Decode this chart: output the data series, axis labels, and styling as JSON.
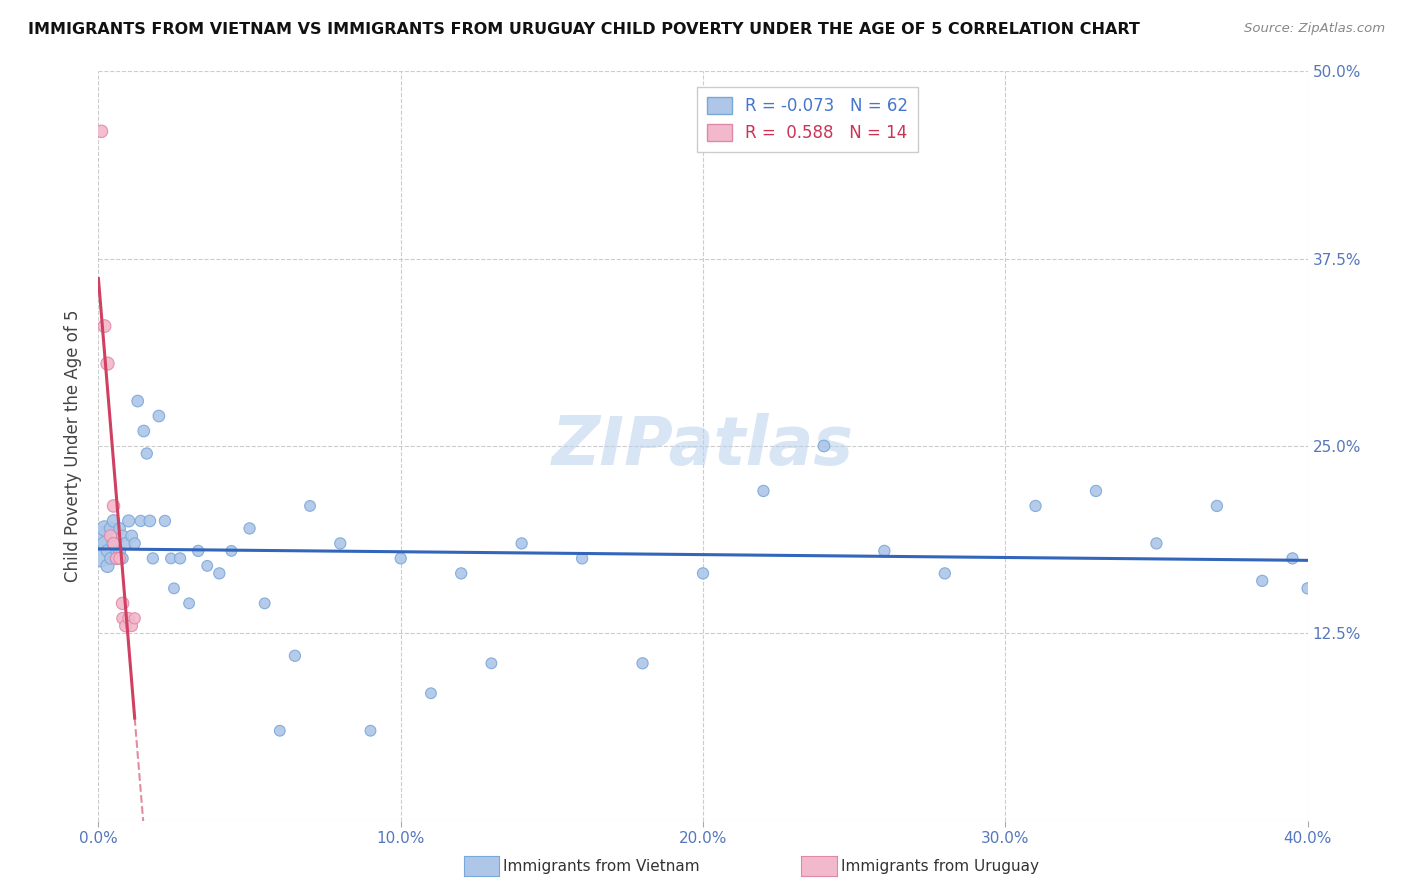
{
  "title": "IMMIGRANTS FROM VIETNAM VS IMMIGRANTS FROM URUGUAY CHILD POVERTY UNDER THE AGE OF 5 CORRELATION CHART",
  "source": "Source: ZipAtlas.com",
  "ylabel": "Child Poverty Under the Age of 5",
  "xlim": [
    0.0,
    0.4
  ],
  "ylim": [
    0.0,
    0.5
  ],
  "xticks": [
    0.0,
    0.1,
    0.2,
    0.3,
    0.4
  ],
  "yticks": [
    0.0,
    0.125,
    0.25,
    0.375,
    0.5
  ],
  "xtick_labels": [
    "0.0%",
    "10.0%",
    "20.0%",
    "30.0%",
    "40.0%"
  ],
  "ytick_labels_right": [
    "",
    "12.5%",
    "25.0%",
    "37.5%",
    "50.0%"
  ],
  "vietnam_color": "#aec6e8",
  "uruguay_color": "#f2b8cb",
  "vietnam_edge": "#7aa8d8",
  "uruguay_edge": "#e088a8",
  "trend_vietnam_color": "#3366bb",
  "trend_uruguay_color": "#d04060",
  "legend_vietnam_label": "Immigrants from Vietnam",
  "legend_uruguay_label": "Immigrants from Uruguay",
  "R_vietnam": -0.073,
  "N_vietnam": 62,
  "R_uruguay": 0.588,
  "N_uruguay": 14,
  "watermark": "ZIPatlas",
  "vietnam_x": [
    0.001,
    0.001,
    0.002,
    0.002,
    0.003,
    0.003,
    0.004,
    0.004,
    0.005,
    0.005,
    0.006,
    0.006,
    0.007,
    0.007,
    0.008,
    0.008,
    0.009,
    0.01,
    0.011,
    0.012,
    0.013,
    0.014,
    0.015,
    0.016,
    0.017,
    0.018,
    0.02,
    0.022,
    0.024,
    0.025,
    0.027,
    0.03,
    0.033,
    0.036,
    0.04,
    0.044,
    0.05,
    0.055,
    0.06,
    0.065,
    0.07,
    0.08,
    0.09,
    0.1,
    0.11,
    0.12,
    0.13,
    0.14,
    0.16,
    0.18,
    0.2,
    0.22,
    0.24,
    0.26,
    0.28,
    0.31,
    0.33,
    0.35,
    0.37,
    0.385,
    0.395,
    0.4
  ],
  "vietnam_y": [
    0.19,
    0.175,
    0.195,
    0.185,
    0.18,
    0.17,
    0.195,
    0.175,
    0.2,
    0.185,
    0.18,
    0.175,
    0.195,
    0.18,
    0.19,
    0.175,
    0.185,
    0.2,
    0.19,
    0.185,
    0.28,
    0.2,
    0.26,
    0.245,
    0.2,
    0.175,
    0.27,
    0.2,
    0.175,
    0.155,
    0.175,
    0.145,
    0.18,
    0.17,
    0.165,
    0.18,
    0.195,
    0.145,
    0.06,
    0.11,
    0.21,
    0.185,
    0.06,
    0.175,
    0.085,
    0.165,
    0.105,
    0.185,
    0.175,
    0.105,
    0.165,
    0.22,
    0.25,
    0.18,
    0.165,
    0.21,
    0.22,
    0.185,
    0.21,
    0.16,
    0.175,
    0.155
  ],
  "vietnam_size": [
    200,
    150,
    120,
    100,
    80,
    90,
    80,
    70,
    80,
    90,
    70,
    80,
    70,
    75,
    70,
    65,
    70,
    75,
    70,
    65,
    70,
    65,
    70,
    65,
    70,
    65,
    70,
    65,
    60,
    60,
    65,
    60,
    65,
    60,
    65,
    60,
    65,
    60,
    60,
    65,
    60,
    65,
    60,
    65,
    60,
    65,
    60,
    65,
    65,
    65,
    65,
    65,
    70,
    65,
    65,
    65,
    65,
    65,
    65,
    65,
    65,
    65
  ],
  "uruguay_x": [
    0.001,
    0.002,
    0.003,
    0.004,
    0.005,
    0.005,
    0.006,
    0.007,
    0.008,
    0.008,
    0.009,
    0.01,
    0.011,
    0.012
  ],
  "uruguay_y": [
    0.46,
    0.33,
    0.305,
    0.19,
    0.21,
    0.185,
    0.175,
    0.175,
    0.145,
    0.135,
    0.13,
    0.135,
    0.13,
    0.135
  ],
  "uruguay_size": [
    80,
    85,
    90,
    75,
    80,
    70,
    75,
    70,
    80,
    70,
    75,
    70,
    70,
    65
  ],
  "trend_v_x0": 0.0,
  "trend_v_x1": 0.4,
  "trend_v_y0": 0.175,
  "trend_v_y1": 0.155,
  "trend_u_solid_x0": 0.0,
  "trend_u_solid_x1": 0.012,
  "trend_u_dash_x1": 0.16
}
